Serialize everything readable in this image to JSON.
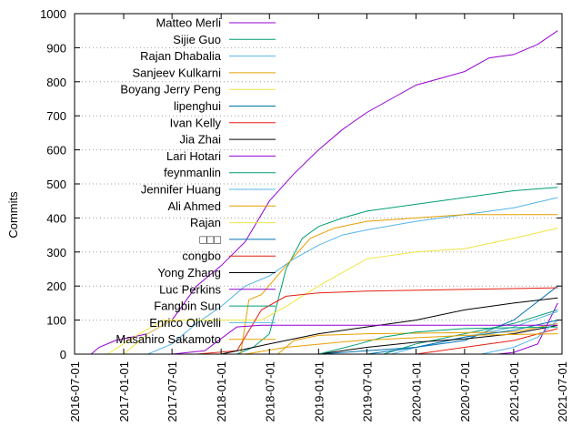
{
  "chart_data": {
    "type": "line",
    "title": "",
    "xlabel": "",
    "ylabel": "Commits",
    "ylim": [
      0,
      1000
    ],
    "yticks": [
      0,
      100,
      200,
      300,
      400,
      500,
      600,
      700,
      800,
      900,
      1000
    ],
    "xlim": [
      "2016-07-01",
      "2021-07-01"
    ],
    "xticks": [
      "2016-07-01",
      "2017-01-01",
      "2017-07-01",
      "2018-01-01",
      "2018-07-01",
      "2019-01-01",
      "2019-07-01",
      "2020-01-01",
      "2020-07-01",
      "2021-01-01",
      "2021-07-01"
    ],
    "grid": "horizontal",
    "legend": "top-right",
    "series": [
      {
        "name": "Matteo Merli",
        "color": "#9400d3",
        "points": [
          [
            "2016-09-01",
            0
          ],
          [
            "2016-10-01",
            20
          ],
          [
            "2016-12-01",
            40
          ],
          [
            "2017-04-01",
            60
          ],
          [
            "2017-07-01",
            100
          ],
          [
            "2017-10-01",
            200
          ],
          [
            "2018-01-01",
            260
          ],
          [
            "2018-04-01",
            330
          ],
          [
            "2018-07-01",
            450
          ],
          [
            "2018-10-01",
            530
          ],
          [
            "2019-01-01",
            600
          ],
          [
            "2019-04-01",
            660
          ],
          [
            "2019-07-01",
            710
          ],
          [
            "2019-10-01",
            750
          ],
          [
            "2020-01-01",
            790
          ],
          [
            "2020-04-01",
            810
          ],
          [
            "2020-07-01",
            830
          ],
          [
            "2020-10-01",
            870
          ],
          [
            "2021-01-01",
            880
          ],
          [
            "2021-04-01",
            910
          ],
          [
            "2021-06-15",
            950
          ]
        ]
      },
      {
        "name": "Sijie Guo",
        "color": "#009e73",
        "points": [
          [
            "2018-03-01",
            0
          ],
          [
            "2018-05-01",
            20
          ],
          [
            "2018-07-01",
            60
          ],
          [
            "2018-09-01",
            250
          ],
          [
            "2018-11-01",
            340
          ],
          [
            "2019-01-01",
            375
          ],
          [
            "2019-04-01",
            400
          ],
          [
            "2019-07-01",
            420
          ],
          [
            "2020-01-01",
            440
          ],
          [
            "2020-07-01",
            460
          ],
          [
            "2021-01-01",
            480
          ],
          [
            "2021-06-15",
            490
          ]
        ]
      },
      {
        "name": "Rajan Dhabalia",
        "color": "#56b4e9",
        "points": [
          [
            "2017-04-01",
            0
          ],
          [
            "2017-07-01",
            30
          ],
          [
            "2017-10-01",
            90
          ],
          [
            "2018-01-01",
            140
          ],
          [
            "2018-04-01",
            200
          ],
          [
            "2018-07-01",
            230
          ],
          [
            "2018-10-01",
            280
          ],
          [
            "2019-01-01",
            320
          ],
          [
            "2019-04-01",
            350
          ],
          [
            "2019-07-01",
            365
          ],
          [
            "2020-01-01",
            390
          ],
          [
            "2020-07-01",
            410
          ],
          [
            "2021-01-01",
            430
          ],
          [
            "2021-06-15",
            460
          ]
        ]
      },
      {
        "name": "Sanjeev Kulkarni",
        "color": "#e69f00",
        "points": [
          [
            "2018-03-15",
            0
          ],
          [
            "2018-04-15",
            160
          ],
          [
            "2018-06-01",
            175
          ],
          [
            "2018-09-01",
            260
          ],
          [
            "2018-12-01",
            340
          ],
          [
            "2019-03-01",
            370
          ],
          [
            "2019-07-01",
            390
          ],
          [
            "2020-01-01",
            400
          ],
          [
            "2020-07-01",
            410
          ],
          [
            "2021-06-15",
            410
          ]
        ]
      },
      {
        "name": "Boyang Jerry Peng",
        "color": "#f0e442",
        "points": [
          [
            "2016-11-01",
            0
          ],
          [
            "2017-03-01",
            60
          ],
          [
            "2017-06-01",
            100
          ],
          [
            "2018-06-01",
            100
          ],
          [
            "2018-09-01",
            140
          ],
          [
            "2019-01-01",
            200
          ],
          [
            "2019-07-01",
            280
          ],
          [
            "2020-01-01",
            300
          ],
          [
            "2020-07-01",
            310
          ],
          [
            "2021-01-01",
            340
          ],
          [
            "2021-06-15",
            370
          ]
        ]
      },
      {
        "name": "lipenghui",
        "color": "#0072b2",
        "points": [
          [
            "2019-01-01",
            0
          ],
          [
            "2019-07-01",
            10
          ],
          [
            "2020-01-01",
            20
          ],
          [
            "2020-07-01",
            40
          ],
          [
            "2021-01-01",
            100
          ],
          [
            "2021-06-15",
            200
          ]
        ]
      },
      {
        "name": "Ivan Kelly",
        "color": "#e51e10",
        "points": [
          [
            "2017-10-01",
            0
          ],
          [
            "2018-03-01",
            10
          ],
          [
            "2018-06-01",
            130
          ],
          [
            "2018-09-01",
            170
          ],
          [
            "2019-01-01",
            180
          ],
          [
            "2019-07-01",
            185
          ],
          [
            "2020-07-01",
            190
          ],
          [
            "2021-06-15",
            195
          ]
        ]
      },
      {
        "name": "Jia Zhai",
        "color": "#000000",
        "points": [
          [
            "2018-01-01",
            0
          ],
          [
            "2018-07-01",
            30
          ],
          [
            "2019-01-01",
            60
          ],
          [
            "2019-07-01",
            80
          ],
          [
            "2020-01-01",
            100
          ],
          [
            "2020-07-01",
            130
          ],
          [
            "2021-01-01",
            150
          ],
          [
            "2021-06-15",
            165
          ]
        ]
      },
      {
        "name": "Lari Hotari",
        "color": "#9400d3",
        "points": [
          [
            "2020-11-01",
            0
          ],
          [
            "2021-01-01",
            5
          ],
          [
            "2021-04-01",
            30
          ],
          [
            "2021-06-15",
            150
          ]
        ]
      },
      {
        "name": "feynmanlin",
        "color": "#009e73",
        "points": [
          [
            "2019-09-01",
            0
          ],
          [
            "2020-01-01",
            30
          ],
          [
            "2020-07-01",
            60
          ],
          [
            "2021-01-01",
            90
          ],
          [
            "2021-06-15",
            130
          ]
        ]
      },
      {
        "name": "Jennifer Huang",
        "color": "#56b4e9",
        "points": [
          [
            "2019-10-01",
            0
          ],
          [
            "2020-01-01",
            20
          ],
          [
            "2020-07-01",
            50
          ],
          [
            "2021-01-01",
            80
          ],
          [
            "2021-06-15",
            125
          ]
        ]
      },
      {
        "name": "Ali Ahmed",
        "color": "#e69f00",
        "points": [
          [
            "2018-08-01",
            0
          ],
          [
            "2018-10-01",
            40
          ],
          [
            "2019-01-01",
            55
          ],
          [
            "2019-07-01",
            60
          ],
          [
            "2021-01-01",
            65
          ],
          [
            "2021-06-15",
            90
          ]
        ]
      },
      {
        "name": "Rajan",
        "color": "#f0e442",
        "points": [
          [
            "2017-01-01",
            0
          ],
          [
            "2017-04-01",
            60
          ],
          [
            "2017-07-01",
            100
          ],
          [
            "2017-08-01",
            100
          ]
        ]
      },
      {
        "name": "□□□",
        "color": "#0072b2",
        "points": [
          [
            "2019-07-01",
            0
          ],
          [
            "2020-01-01",
            20
          ],
          [
            "2020-07-01",
            50
          ],
          [
            "2021-01-01",
            70
          ],
          [
            "2021-06-15",
            100
          ]
        ]
      },
      {
        "name": "congbo",
        "color": "#e51e10",
        "points": [
          [
            "2020-01-01",
            0
          ],
          [
            "2020-07-01",
            20
          ],
          [
            "2021-01-01",
            40
          ],
          [
            "2021-06-15",
            75
          ]
        ]
      },
      {
        "name": "Yong Zhang",
        "color": "#000000",
        "points": [
          [
            "2019-01-01",
            0
          ],
          [
            "2019-07-01",
            20
          ],
          [
            "2020-01-01",
            35
          ],
          [
            "2020-07-01",
            45
          ],
          [
            "2021-01-01",
            60
          ],
          [
            "2021-06-15",
            85
          ]
        ]
      },
      {
        "name": "Luc Perkins",
        "color": "#9400d3",
        "points": [
          [
            "2017-07-01",
            0
          ],
          [
            "2017-11-01",
            10
          ],
          [
            "2018-03-01",
            80
          ],
          [
            "2018-06-01",
            85
          ],
          [
            "2021-06-15",
            85
          ]
        ]
      },
      {
        "name": "Fangbin Sun",
        "color": "#009e73",
        "points": [
          [
            "2019-01-01",
            0
          ],
          [
            "2019-06-01",
            30
          ],
          [
            "2019-09-01",
            50
          ],
          [
            "2020-01-01",
            65
          ],
          [
            "2020-07-01",
            75
          ],
          [
            "2021-06-15",
            80
          ]
        ]
      },
      {
        "name": "Enrico Olivelli",
        "color": "#56b4e9",
        "points": [
          [
            "2020-09-01",
            0
          ],
          [
            "2021-01-01",
            20
          ],
          [
            "2021-04-01",
            50
          ],
          [
            "2021-06-15",
            100
          ]
        ]
      },
      {
        "name": "Masahiro Sakamoto",
        "color": "#e69f00",
        "points": [
          [
            "2018-04-01",
            0
          ],
          [
            "2018-09-01",
            20
          ],
          [
            "2019-06-01",
            40
          ],
          [
            "2020-07-01",
            55
          ],
          [
            "2021-06-15",
            60
          ]
        ]
      }
    ]
  }
}
